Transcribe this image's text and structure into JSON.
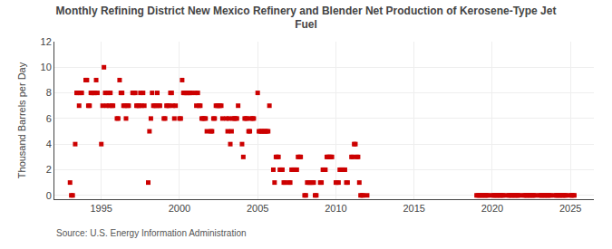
{
  "chart_data": {
    "type": "scatter",
    "title": "Monthly Refining District New Mexico Refinery and Blender Net Production of Kerosene-Type Jet\nFuel",
    "ylabel": "Thousand Barrels per Day",
    "annotations": [
      "Source: U.S. Energy Information Administration"
    ],
    "color": "#cc0000",
    "marker": "square",
    "grid": true,
    "xlim": [
      1992.0,
      2026.5
    ],
    "ylim": [
      -0.3,
      12
    ],
    "xticks": [
      1995,
      2000,
      2005,
      2010,
      2015,
      2020,
      2025
    ],
    "yticks": [
      0,
      2,
      4,
      6,
      8,
      10,
      12
    ],
    "x": [
      1993.0,
      1993.08,
      1993.17,
      1993.33,
      1993.42,
      1993.5,
      1993.58,
      1993.67,
      1993.75,
      1994.0,
      1994.08,
      1994.17,
      1994.25,
      1994.33,
      1994.42,
      1994.5,
      1994.58,
      1994.67,
      1994.75,
      1995.0,
      1995.08,
      1995.17,
      1995.25,
      1995.33,
      1995.42,
      1995.5,
      1995.58,
      1995.67,
      1995.75,
      1996.0,
      1996.08,
      1996.17,
      1996.25,
      1996.33,
      1996.42,
      1996.5,
      1996.58,
      1996.67,
      1996.75,
      1997.0,
      1997.08,
      1997.17,
      1997.25,
      1997.33,
      1997.42,
      1997.5,
      1997.58,
      1997.67,
      1997.75,
      1998.0,
      1998.08,
      1998.17,
      1998.25,
      1998.33,
      1998.42,
      1998.5,
      1998.58,
      1998.67,
      1998.75,
      1999.0,
      1999.08,
      1999.17,
      1999.25,
      1999.33,
      1999.42,
      1999.5,
      1999.58,
      1999.67,
      1999.75,
      2000.0,
      2000.08,
      2000.17,
      2000.25,
      2000.33,
      2000.42,
      2000.5,
      2000.58,
      2000.67,
      2000.75,
      2001.0,
      2001.08,
      2001.17,
      2001.25,
      2001.33,
      2001.42,
      2001.5,
      2001.58,
      2001.67,
      2001.75,
      2002.0,
      2002.08,
      2002.17,
      2002.25,
      2002.33,
      2002.42,
      2002.5,
      2002.58,
      2002.67,
      2002.75,
      2003.0,
      2003.08,
      2003.17,
      2003.25,
      2003.33,
      2003.42,
      2003.5,
      2003.58,
      2003.67,
      2003.75,
      2004.0,
      2004.08,
      2004.17,
      2004.25,
      2004.33,
      2004.42,
      2004.5,
      2004.58,
      2004.67,
      2004.75,
      2005.0,
      2005.08,
      2005.17,
      2005.25,
      2005.33,
      2005.42,
      2005.5,
      2005.58,
      2005.67,
      2005.75,
      2006.0,
      2006.08,
      2006.17,
      2006.25,
      2006.33,
      2006.42,
      2006.5,
      2006.58,
      2006.67,
      2006.75,
      2007.0,
      2007.08,
      2007.17,
      2007.25,
      2007.33,
      2007.42,
      2007.5,
      2007.58,
      2007.67,
      2007.75,
      2008.0,
      2008.08,
      2008.17,
      2008.25,
      2008.33,
      2008.42,
      2008.5,
      2008.58,
      2008.67,
      2008.75,
      2009.0,
      2009.08,
      2009.17,
      2009.25,
      2009.33,
      2009.42,
      2009.5,
      2009.58,
      2009.67,
      2009.75,
      2010.0,
      2010.08,
      2010.17,
      2010.25,
      2010.33,
      2010.42,
      2010.5,
      2010.58,
      2010.67,
      2010.75,
      2011.0,
      2011.08,
      2011.17,
      2011.25,
      2011.33,
      2011.42,
      2011.5,
      2011.58,
      2011.67,
      2011.75,
      2012.0,
      2019.0,
      2019.08,
      2019.17,
      2019.25,
      2019.33,
      2019.42,
      2019.5,
      2019.58,
      2019.67,
      2019.75,
      2020.0,
      2020.08,
      2020.17,
      2020.25,
      2020.33,
      2020.42,
      2020.5,
      2020.58,
      2020.67,
      2020.75,
      2021.0,
      2021.08,
      2021.17,
      2021.25,
      2021.33,
      2021.42,
      2021.5,
      2021.58,
      2021.67,
      2021.75,
      2022.0,
      2022.08,
      2022.17,
      2022.25,
      2022.33,
      2022.42,
      2022.5,
      2022.58,
      2022.67,
      2022.75,
      2023.0,
      2023.08,
      2023.17,
      2023.25,
      2023.33,
      2023.42,
      2023.5,
      2023.58,
      2023.67,
      2023.75,
      2024.0,
      2024.08,
      2024.17,
      2024.25,
      2024.33,
      2024.42,
      2024.5,
      2024.58,
      2024.67,
      2024.75,
      2025.0,
      2025.08,
      2025.17,
      2025.25
    ],
    "values": [
      1,
      0,
      0,
      4,
      8,
      8,
      7,
      8,
      8,
      9,
      9,
      7,
      7,
      8,
      8,
      8,
      8,
      9,
      8,
      4,
      7,
      10,
      8,
      7,
      8,
      7,
      8,
      7,
      7,
      6,
      6,
      9,
      8,
      8,
      7,
      7,
      6,
      7,
      7,
      8,
      8,
      8,
      7,
      7,
      7,
      8,
      7,
      8,
      7,
      1,
      5,
      6,
      8,
      7,
      7,
      7,
      8,
      7,
      7,
      6,
      6,
      7,
      7,
      7,
      8,
      8,
      7,
      6,
      7,
      6,
      6,
      9,
      8,
      8,
      8,
      8,
      8,
      8,
      8,
      8,
      7,
      8,
      7,
      7,
      6,
      6,
      6,
      6,
      5,
      5,
      5,
      6,
      6,
      7,
      7,
      7,
      7,
      7,
      6,
      6,
      5,
      6,
      4,
      5,
      6,
      6,
      6,
      6,
      7,
      4,
      3,
      6,
      6,
      6,
      5,
      5,
      6,
      6,
      6,
      8,
      5,
      5,
      5,
      5,
      5,
      5,
      5,
      5,
      7,
      2,
      1,
      3,
      3,
      3,
      2,
      2,
      2,
      1,
      1,
      1,
      1,
      2,
      2,
      2,
      2,
      2,
      3,
      3,
      3,
      0,
      0,
      1,
      1,
      1,
      1,
      1,
      1,
      0,
      0,
      1,
      1,
      2,
      2,
      2,
      3,
      3,
      3,
      3,
      3,
      1,
      1,
      1,
      2,
      2,
      2,
      2,
      2,
      1,
      1,
      3,
      3,
      4,
      4,
      3,
      3,
      1,
      0,
      0,
      0,
      0,
      0,
      0,
      0,
      0,
      0,
      0,
      0,
      0,
      0,
      0,
      0,
      0,
      0,
      0,
      0,
      0,
      0,
      0,
      0,
      0,
      0,
      0,
      0,
      0,
      0,
      0,
      0,
      0,
      0,
      0,
      0,
      0,
      0,
      0,
      0,
      0,
      0,
      0,
      0,
      0,
      0,
      0,
      0,
      0,
      0,
      0,
      0,
      0,
      0,
      0,
      0,
      0,
      0,
      0,
      0,
      0,
      0,
      0,
      0,
      0,
      0,
      0,
      0,
      0
    ]
  }
}
